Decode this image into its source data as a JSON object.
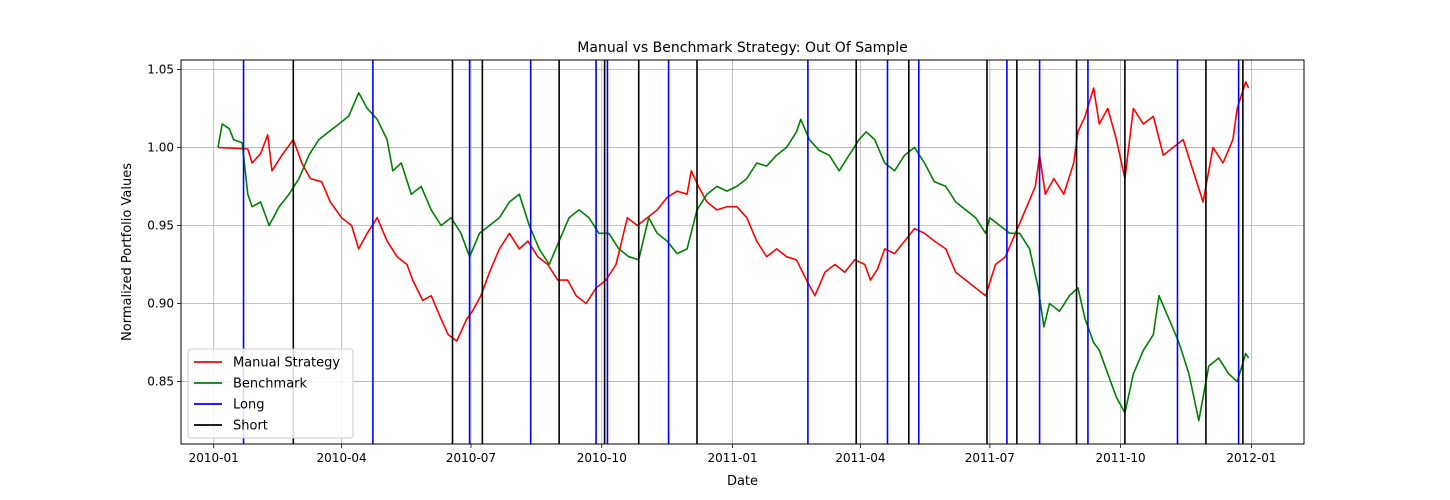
{
  "chart_data": {
    "type": "line",
    "title": "Manual vs Benchmark Strategy: Out Of Sample",
    "xlabel": "Date",
    "ylabel": "Normalized Portfolio Values",
    "xlim": [
      "2009-12-09",
      "2012-02-07"
    ],
    "ylim": [
      0.81,
      1.056
    ],
    "x_ticks": [
      {
        "date": "2010-01-01",
        "label": "2010-01"
      },
      {
        "date": "2010-04-01",
        "label": "2010-04"
      },
      {
        "date": "2010-07-01",
        "label": "2010-07"
      },
      {
        "date": "2010-10-01",
        "label": "2010-10"
      },
      {
        "date": "2011-01-01",
        "label": "2011-01"
      },
      {
        "date": "2011-04-01",
        "label": "2011-04"
      },
      {
        "date": "2011-07-01",
        "label": "2011-07"
      },
      {
        "date": "2011-10-01",
        "label": "2011-10"
      },
      {
        "date": "2012-01-01",
        "label": "2012-01"
      }
    ],
    "y_ticks": [
      0.85,
      0.9,
      0.95,
      1.0,
      1.05
    ],
    "y_tick_labels": [
      "0.85",
      "0.90",
      "0.95",
      "1.00",
      "1.05"
    ],
    "grid": true,
    "legend_position": "lower-left",
    "series": [
      {
        "name": "Manual Strategy",
        "color": "#ff0000",
        "points": [
          [
            "2010-01-04",
            1.0
          ],
          [
            "2010-01-25",
            0.999
          ],
          [
            "2010-01-28",
            0.99
          ],
          [
            "2010-02-03",
            0.996
          ],
          [
            "2010-02-08",
            1.008
          ],
          [
            "2010-02-11",
            0.985
          ],
          [
            "2010-02-18",
            0.995
          ],
          [
            "2010-02-26",
            1.005
          ],
          [
            "2010-03-04",
            0.99
          ],
          [
            "2010-03-10",
            0.98
          ],
          [
            "2010-03-18",
            0.978
          ],
          [
            "2010-03-24",
            0.965
          ],
          [
            "2010-04-01",
            0.955
          ],
          [
            "2010-04-08",
            0.95
          ],
          [
            "2010-04-13",
            0.935
          ],
          [
            "2010-04-19",
            0.945
          ],
          [
            "2010-04-26",
            0.955
          ],
          [
            "2010-05-03",
            0.94
          ],
          [
            "2010-05-10",
            0.93
          ],
          [
            "2010-05-17",
            0.925
          ],
          [
            "2010-05-21",
            0.915
          ],
          [
            "2010-05-28",
            0.902
          ],
          [
            "2010-06-03",
            0.905
          ],
          [
            "2010-06-10",
            0.89
          ],
          [
            "2010-06-15",
            0.88
          ],
          [
            "2010-06-21",
            0.876
          ],
          [
            "2010-06-28",
            0.89
          ],
          [
            "2010-07-02",
            0.895
          ],
          [
            "2010-07-08",
            0.905
          ],
          [
            "2010-07-14",
            0.92
          ],
          [
            "2010-07-21",
            0.935
          ],
          [
            "2010-07-28",
            0.945
          ],
          [
            "2010-08-04",
            0.935
          ],
          [
            "2010-08-10",
            0.94
          ],
          [
            "2010-08-17",
            0.93
          ],
          [
            "2010-08-24",
            0.925
          ],
          [
            "2010-08-31",
            0.915
          ],
          [
            "2010-09-07",
            0.915
          ],
          [
            "2010-09-13",
            0.905
          ],
          [
            "2010-09-20",
            0.9
          ],
          [
            "2010-09-27",
            0.91
          ],
          [
            "2010-10-04",
            0.915
          ],
          [
            "2010-10-11",
            0.925
          ],
          [
            "2010-10-15",
            0.94
          ],
          [
            "2010-10-19",
            0.955
          ],
          [
            "2010-10-26",
            0.95
          ],
          [
            "2010-11-02",
            0.955
          ],
          [
            "2010-11-09",
            0.96
          ],
          [
            "2010-11-16",
            0.968
          ],
          [
            "2010-11-23",
            0.972
          ],
          [
            "2010-11-30",
            0.97
          ],
          [
            "2010-12-03",
            0.985
          ],
          [
            "2010-12-08",
            0.975
          ],
          [
            "2010-12-14",
            0.965
          ],
          [
            "2010-12-21",
            0.96
          ],
          [
            "2010-12-28",
            0.962
          ],
          [
            "2011-01-04",
            0.962
          ],
          [
            "2011-01-11",
            0.955
          ],
          [
            "2011-01-18",
            0.94
          ],
          [
            "2011-01-25",
            0.93
          ],
          [
            "2011-02-01",
            0.935
          ],
          [
            "2011-02-08",
            0.93
          ],
          [
            "2011-02-15",
            0.928
          ],
          [
            "2011-02-22",
            0.915
          ],
          [
            "2011-02-28",
            0.905
          ],
          [
            "2011-03-07",
            0.92
          ],
          [
            "2011-03-14",
            0.925
          ],
          [
            "2011-03-21",
            0.92
          ],
          [
            "2011-03-28",
            0.928
          ],
          [
            "2011-04-04",
            0.925
          ],
          [
            "2011-04-08",
            0.915
          ],
          [
            "2011-04-13",
            0.922
          ],
          [
            "2011-04-18",
            0.935
          ],
          [
            "2011-04-25",
            0.932
          ],
          [
            "2011-05-02",
            0.94
          ],
          [
            "2011-05-09",
            0.948
          ],
          [
            "2011-05-16",
            0.945
          ],
          [
            "2011-05-23",
            0.94
          ],
          [
            "2011-05-31",
            0.935
          ],
          [
            "2011-06-07",
            0.92
          ],
          [
            "2011-06-14",
            0.915
          ],
          [
            "2011-06-21",
            0.91
          ],
          [
            "2011-06-28",
            0.905
          ],
          [
            "2011-07-05",
            0.925
          ],
          [
            "2011-07-12",
            0.93
          ],
          [
            "2011-07-19",
            0.945
          ],
          [
            "2011-07-26",
            0.96
          ],
          [
            "2011-08-02",
            0.975
          ],
          [
            "2011-08-05",
            0.995
          ],
          [
            "2011-08-09",
            0.97
          ],
          [
            "2011-08-15",
            0.98
          ],
          [
            "2011-08-22",
            0.97
          ],
          [
            "2011-08-29",
            0.99
          ],
          [
            "2011-09-01",
            1.01
          ],
          [
            "2011-09-06",
            1.02
          ],
          [
            "2011-09-12",
            1.038
          ],
          [
            "2011-09-16",
            1.015
          ],
          [
            "2011-09-22",
            1.025
          ],
          [
            "2011-09-28",
            1.005
          ],
          [
            "2011-10-04",
            0.98
          ],
          [
            "2011-10-10",
            1.025
          ],
          [
            "2011-10-17",
            1.015
          ],
          [
            "2011-10-24",
            1.02
          ],
          [
            "2011-10-31",
            0.995
          ],
          [
            "2011-11-07",
            1.0
          ],
          [
            "2011-11-14",
            1.005
          ],
          [
            "2011-11-21",
            0.985
          ],
          [
            "2011-11-28",
            0.965
          ],
          [
            "2011-12-05",
            1.0
          ],
          [
            "2011-12-12",
            0.99
          ],
          [
            "2011-12-19",
            1.005
          ],
          [
            "2011-12-22",
            1.025
          ],
          [
            "2011-12-28",
            1.042
          ],
          [
            "2011-12-30",
            1.038
          ]
        ]
      },
      {
        "name": "Benchmark",
        "color": "#008000",
        "points": [
          [
            "2010-01-04",
            1.0
          ],
          [
            "2010-01-07",
            1.015
          ],
          [
            "2010-01-12",
            1.012
          ],
          [
            "2010-01-15",
            1.005
          ],
          [
            "2010-01-21",
            1.003
          ],
          [
            "2010-01-25",
            0.97
          ],
          [
            "2010-01-28",
            0.962
          ],
          [
            "2010-02-03",
            0.965
          ],
          [
            "2010-02-09",
            0.95
          ],
          [
            "2010-02-16",
            0.962
          ],
          [
            "2010-02-23",
            0.97
          ],
          [
            "2010-03-02",
            0.98
          ],
          [
            "2010-03-09",
            0.995
          ],
          [
            "2010-03-16",
            1.005
          ],
          [
            "2010-03-23",
            1.01
          ],
          [
            "2010-03-30",
            1.015
          ],
          [
            "2010-04-06",
            1.02
          ],
          [
            "2010-04-13",
            1.035
          ],
          [
            "2010-04-19",
            1.025
          ],
          [
            "2010-04-26",
            1.018
          ],
          [
            "2010-05-03",
            1.005
          ],
          [
            "2010-05-07",
            0.985
          ],
          [
            "2010-05-13",
            0.99
          ],
          [
            "2010-05-20",
            0.97
          ],
          [
            "2010-05-27",
            0.975
          ],
          [
            "2010-06-03",
            0.96
          ],
          [
            "2010-06-10",
            0.95
          ],
          [
            "2010-06-17",
            0.955
          ],
          [
            "2010-06-24",
            0.945
          ],
          [
            "2010-06-30",
            0.93
          ],
          [
            "2010-07-07",
            0.945
          ],
          [
            "2010-07-14",
            0.95
          ],
          [
            "2010-07-21",
            0.955
          ],
          [
            "2010-07-28",
            0.965
          ],
          [
            "2010-08-04",
            0.97
          ],
          [
            "2010-08-11",
            0.95
          ],
          [
            "2010-08-18",
            0.935
          ],
          [
            "2010-08-25",
            0.925
          ],
          [
            "2010-09-01",
            0.94
          ],
          [
            "2010-09-08",
            0.955
          ],
          [
            "2010-09-15",
            0.96
          ],
          [
            "2010-09-22",
            0.955
          ],
          [
            "2010-09-29",
            0.945
          ],
          [
            "2010-10-06",
            0.945
          ],
          [
            "2010-10-13",
            0.935
          ],
          [
            "2010-10-20",
            0.93
          ],
          [
            "2010-10-27",
            0.928
          ],
          [
            "2010-11-03",
            0.955
          ],
          [
            "2010-11-09",
            0.945
          ],
          [
            "2010-11-16",
            0.94
          ],
          [
            "2010-11-23",
            0.932
          ],
          [
            "2010-11-30",
            0.935
          ],
          [
            "2010-12-07",
            0.96
          ],
          [
            "2010-12-14",
            0.97
          ],
          [
            "2010-12-21",
            0.975
          ],
          [
            "2010-12-28",
            0.972
          ],
          [
            "2011-01-04",
            0.975
          ],
          [
            "2011-01-11",
            0.98
          ],
          [
            "2011-01-18",
            0.99
          ],
          [
            "2011-01-25",
            0.988
          ],
          [
            "2011-02-01",
            0.995
          ],
          [
            "2011-02-08",
            1.0
          ],
          [
            "2011-02-15",
            1.01
          ],
          [
            "2011-02-18",
            1.018
          ],
          [
            "2011-02-24",
            1.005
          ],
          [
            "2011-03-03",
            0.998
          ],
          [
            "2011-03-10",
            0.995
          ],
          [
            "2011-03-17",
            0.985
          ],
          [
            "2011-03-24",
            0.995
          ],
          [
            "2011-03-31",
            1.005
          ],
          [
            "2011-04-05",
            1.01
          ],
          [
            "2011-04-11",
            1.005
          ],
          [
            "2011-04-18",
            0.99
          ],
          [
            "2011-04-25",
            0.985
          ],
          [
            "2011-05-02",
            0.995
          ],
          [
            "2011-05-09",
            1.0
          ],
          [
            "2011-05-16",
            0.99
          ],
          [
            "2011-05-23",
            0.978
          ],
          [
            "2011-05-31",
            0.975
          ],
          [
            "2011-06-07",
            0.965
          ],
          [
            "2011-06-14",
            0.96
          ],
          [
            "2011-06-21",
            0.955
          ],
          [
            "2011-06-28",
            0.945
          ],
          [
            "2011-07-01",
            0.955
          ],
          [
            "2011-07-08",
            0.95
          ],
          [
            "2011-07-15",
            0.945
          ],
          [
            "2011-07-22",
            0.945
          ],
          [
            "2011-07-29",
            0.935
          ],
          [
            "2011-08-04",
            0.91
          ],
          [
            "2011-08-08",
            0.885
          ],
          [
            "2011-08-12",
            0.9
          ],
          [
            "2011-08-19",
            0.895
          ],
          [
            "2011-08-26",
            0.905
          ],
          [
            "2011-09-01",
            0.91
          ],
          [
            "2011-09-06",
            0.89
          ],
          [
            "2011-09-12",
            0.875
          ],
          [
            "2011-09-16",
            0.87
          ],
          [
            "2011-09-22",
            0.855
          ],
          [
            "2011-09-28",
            0.84
          ],
          [
            "2011-10-04",
            0.83
          ],
          [
            "2011-10-10",
            0.855
          ],
          [
            "2011-10-17",
            0.87
          ],
          [
            "2011-10-24",
            0.88
          ],
          [
            "2011-10-28",
            0.905
          ],
          [
            "2011-11-04",
            0.89
          ],
          [
            "2011-11-11",
            0.875
          ],
          [
            "2011-11-18",
            0.855
          ],
          [
            "2011-11-25",
            0.825
          ],
          [
            "2011-12-02",
            0.86
          ],
          [
            "2011-12-09",
            0.865
          ],
          [
            "2011-12-16",
            0.855
          ],
          [
            "2011-12-22",
            0.85
          ],
          [
            "2011-12-28",
            0.868
          ],
          [
            "2011-12-30",
            0.865
          ]
        ]
      }
    ],
    "long_entries": {
      "name": "Long",
      "color": "#0000ff",
      "dates": [
        "2010-01-22",
        "2010-04-23",
        "2010-06-30",
        "2010-08-12",
        "2010-09-27",
        "2010-10-05",
        "2010-11-17",
        "2011-02-23",
        "2011-04-20",
        "2011-05-12",
        "2011-07-13",
        "2011-08-05",
        "2011-09-08",
        "2011-11-10",
        "2011-12-23"
      ]
    },
    "short_entries": {
      "name": "Short",
      "color": "#000000",
      "dates": [
        "2010-02-26",
        "2010-06-18",
        "2010-07-09",
        "2010-09-01",
        "2010-10-03",
        "2010-10-27",
        "2010-12-07",
        "2011-03-29",
        "2011-05-05",
        "2011-06-29",
        "2011-07-20",
        "2011-08-31",
        "2011-10-04",
        "2011-11-30",
        "2011-12-26"
      ]
    }
  }
}
